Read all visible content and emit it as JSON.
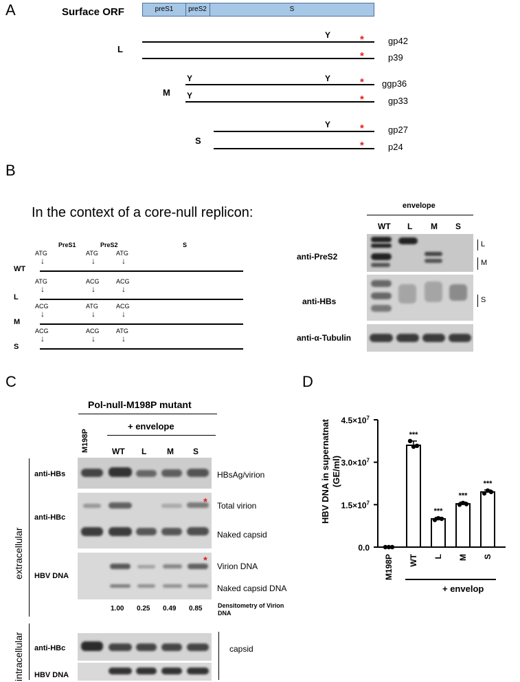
{
  "panelA": {
    "letter": "A",
    "title": "Surface ORF",
    "domains": [
      "preS1",
      "preS2",
      "S"
    ],
    "groups": [
      {
        "name": "L",
        "products": [
          "gp42",
          "p39"
        ]
      },
      {
        "name": "M",
        "products": [
          "ggp36",
          "gp33"
        ]
      },
      {
        "name": "S",
        "products": [
          "gp27",
          "p24"
        ]
      }
    ],
    "glyco_symbol": "Y",
    "stop_symbol": "*"
  },
  "panelB": {
    "letter": "B",
    "context": "In the context of a core-null replicon:",
    "headers": [
      "PreS1",
      "PreS2",
      "S"
    ],
    "constructs": [
      {
        "name": "WT",
        "codons": [
          "ATG",
          "ATG",
          "ATG"
        ]
      },
      {
        "name": "L",
        "codons": [
          "ATG",
          "ACG",
          "ACG"
        ]
      },
      {
        "name": "M",
        "codons": [
          "ACG",
          "ATG",
          "ACG"
        ]
      },
      {
        "name": "S",
        "codons": [
          "ACG",
          "ACG",
          "ATG"
        ]
      }
    ],
    "blot_group": "envelope",
    "lanes": [
      "WT",
      "L",
      "M",
      "S"
    ],
    "rows": [
      "anti-PreS2",
      "anti-HBs",
      "anti-α-Tubulin"
    ],
    "side_marks": [
      "L",
      "M",
      "S"
    ]
  },
  "panelC": {
    "letter": "C",
    "title": "Pol-null-M198P mutant",
    "plus_envelope": "+ envelope",
    "lanes": [
      "M198P",
      "WT",
      "L",
      "M",
      "S"
    ],
    "sections": [
      "extracellular",
      "intracellular"
    ],
    "rows": [
      "anti-HBs",
      "anti-HBc",
      "HBV DNA",
      "anti-HBc",
      "HBV DNA"
    ],
    "right_labels": [
      "HBsAg/virion",
      "Total virion",
      "Naked capsid",
      "Virion DNA",
      "Naked capsid DNA",
      "capsid"
    ],
    "densitometry_values": [
      "1.00",
      "0.25",
      "0.49",
      "0.85"
    ],
    "densitometry_label_1": "Densitometry of Virion",
    "densitometry_label_2": "DNA",
    "star": "*"
  },
  "panelD": {
    "letter": "D",
    "chart_data": {
      "type": "bar",
      "ylabel_1": "HBV DNA in supernatnat",
      "ylabel_2": "(GE/ml)",
      "categories": [
        "M198P",
        "WT",
        "L",
        "M",
        "S"
      ],
      "values": [
        0,
        36000000,
        10000000,
        15300000,
        19500000
      ],
      "points": [
        [
          0,
          0,
          0
        ],
        [
          37500000,
          35500000,
          35800000
        ],
        [
          9600000,
          10200000,
          10000000
        ],
        [
          15000000,
          15600000,
          15200000
        ],
        [
          19000000,
          20000000,
          19500000
        ]
      ],
      "error": [
        0,
        1500000,
        500000,
        600000,
        700000
      ],
      "significance": [
        "",
        "***",
        "***",
        "***",
        "***"
      ],
      "ylim": [
        0,
        45000000
      ],
      "yticks": [
        0,
        15000000,
        30000000,
        45000000
      ],
      "ytick_labels": [
        "0.0",
        "1.5×10",
        "3.0×10",
        "4.5×10"
      ],
      "ytick_exp": [
        "",
        "7",
        "7",
        "7"
      ],
      "group_label": "+ envelop"
    }
  }
}
